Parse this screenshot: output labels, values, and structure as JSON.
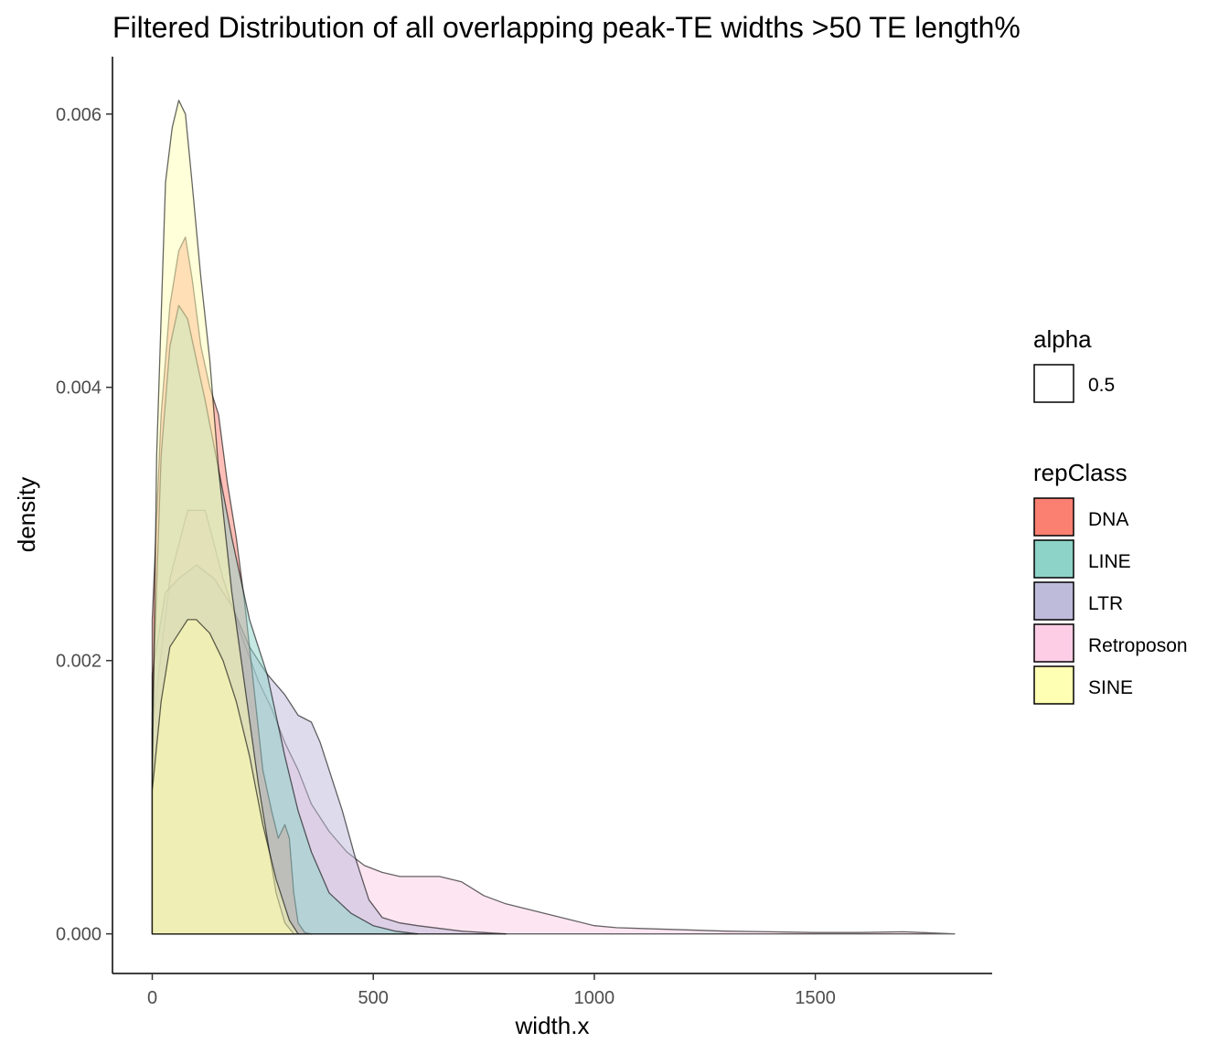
{
  "chart_data": {
    "type": "area",
    "subtype": "density",
    "title": "Filtered Distribution of all overlapping peak-TE widths >50 TE length%",
    "xlabel": "width.x",
    "ylabel": "density",
    "xlim": [
      -90,
      1900
    ],
    "ylim": [
      -0.00029,
      0.00642
    ],
    "x_ticks": [
      0,
      500,
      1000,
      1500
    ],
    "x_tick_labels": [
      "0",
      "500",
      "1000",
      "1500"
    ],
    "y_ticks": [
      0.0,
      0.002,
      0.004,
      0.006
    ],
    "y_tick_labels": [
      "0.000",
      "0.002",
      "0.004",
      "0.006"
    ],
    "grid": false,
    "fill_alpha": 0.5,
    "legend_position": "right",
    "legend_alpha": {
      "title": "alpha",
      "entries": [
        "0.5"
      ]
    },
    "legend_fill": {
      "title": "repClass",
      "entries": [
        {
          "label": "DNA",
          "color": "#FB8072"
        },
        {
          "label": "LINE",
          "color": "#8DD3C7"
        },
        {
          "label": "LTR",
          "color": "#BEBADA"
        },
        {
          "label": "Retroposon",
          "color": "#FCCDE5"
        },
        {
          "label": "SINE",
          "color": "#FFFFB3"
        }
      ]
    },
    "series": [
      {
        "name": "Retroposon",
        "color": "#FCCDE5",
        "x": [
          0,
          40,
          80,
          120,
          160,
          200,
          240,
          270,
          300,
          330,
          360,
          400,
          440,
          480,
          520,
          560,
          600,
          650,
          700,
          750,
          800,
          850,
          900,
          950,
          1000,
          1050,
          1100,
          1200,
          1300,
          1400,
          1500,
          1600,
          1700,
          1815
        ],
        "y": [
          0.0015,
          0.0026,
          0.0031,
          0.0031,
          0.0026,
          0.0022,
          0.00185,
          0.00165,
          0.0014,
          0.0012,
          0.00095,
          0.00075,
          0.0006,
          0.0005,
          0.00045,
          0.00042,
          0.00042,
          0.00042,
          0.00038,
          0.00028,
          0.00022,
          0.00018,
          0.00014,
          0.0001,
          6e-05,
          4.5e-05,
          4e-05,
          3e-05,
          2e-05,
          1.5e-05,
          1e-05,
          1e-05,
          1.5e-05,
          0
        ]
      },
      {
        "name": "LTR",
        "color": "#BEBADA",
        "x": [
          0,
          30,
          60,
          100,
          140,
          180,
          220,
          260,
          300,
          330,
          360,
          380,
          400,
          430,
          460,
          490,
          520,
          560,
          600,
          650,
          700,
          750,
          800
        ],
        "y": [
          0.0019,
          0.0025,
          0.0026,
          0.0027,
          0.0026,
          0.0024,
          0.0021,
          0.0019,
          0.00175,
          0.0016,
          0.00155,
          0.0014,
          0.0012,
          0.0009,
          0.00055,
          0.00025,
          0.00012,
          8e-05,
          6e-05,
          4e-05,
          2e-05,
          1e-05,
          0
        ]
      },
      {
        "name": "DNA",
        "color": "#FB8072",
        "x": [
          0,
          20,
          40,
          60,
          75,
          90,
          110,
          130,
          150,
          170,
          190,
          210,
          230,
          250,
          270,
          285,
          300,
          310,
          320,
          330,
          345,
          360
        ],
        "y": [
          0.0023,
          0.0038,
          0.0046,
          0.005,
          0.0051,
          0.0048,
          0.0043,
          0.004,
          0.0038,
          0.0033,
          0.0029,
          0.0024,
          0.0018,
          0.0012,
          0.0009,
          0.0007,
          0.0008,
          0.0007,
          0.0003,
          8e-05,
          1e-05,
          0
        ]
      },
      {
        "name": "LINE",
        "color": "#8DD3C7",
        "x": [
          0,
          20,
          40,
          60,
          80,
          100,
          120,
          150,
          180,
          200,
          220,
          240,
          260,
          280,
          300,
          330,
          360,
          400,
          450,
          500,
          550,
          600
        ],
        "y": [
          0.0016,
          0.0035,
          0.0043,
          0.0046,
          0.0045,
          0.0042,
          0.0039,
          0.0034,
          0.0029,
          0.0026,
          0.0023,
          0.0021,
          0.0019,
          0.0016,
          0.0013,
          0.0009,
          0.0006,
          0.0003,
          0.00015,
          6e-05,
          2e-05,
          0
        ]
      },
      {
        "name": "SINE",
        "color": "#FFFFB3",
        "x": [
          0,
          10,
          30,
          45,
          60,
          75,
          90,
          110,
          130,
          150,
          180,
          210,
          240,
          260,
          280,
          300,
          320
        ],
        "y": [
          0.0011,
          0.0035,
          0.0055,
          0.0059,
          0.0061,
          0.006,
          0.0055,
          0.0048,
          0.0042,
          0.0034,
          0.0025,
          0.0018,
          0.0011,
          0.0007,
          0.0003,
          8e-05,
          0
        ]
      },
      {
        "name": "SINE",
        "color": "#FFFFB3",
        "x": [
          0,
          20,
          40,
          60,
          80,
          100,
          130,
          160,
          190,
          220,
          250,
          280,
          310,
          330
        ],
        "y": [
          0.00105,
          0.0017,
          0.0021,
          0.0022,
          0.0023,
          0.0023,
          0.0022,
          0.002,
          0.0017,
          0.0013,
          0.0008,
          0.0004,
          0.0001,
          0
        ]
      }
    ]
  }
}
